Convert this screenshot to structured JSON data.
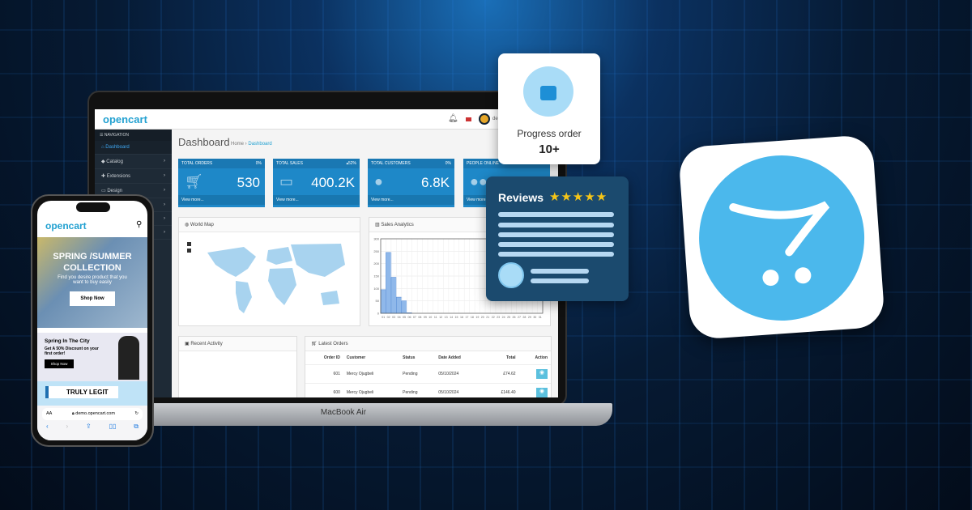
{
  "colors": {
    "accent": "#23a1d1",
    "tile": "#1e88c8",
    "sidebar": "#1e2a36",
    "logo_circle": "#4bb8ec",
    "review_card": "#1b4a6e",
    "star": "#f5c518"
  },
  "laptop": {
    "model_label": "MacBook Air"
  },
  "dashboard": {
    "brand": "opencart",
    "user_name": "de",
    "nav_header": "NAVIGATION",
    "nav": [
      {
        "label": "Dashboard",
        "icon": "home-icon"
      },
      {
        "label": "Catalog",
        "icon": "tag-icon"
      },
      {
        "label": "Extensions",
        "icon": "puzzle-icon"
      },
      {
        "label": "Design",
        "icon": "monitor-icon"
      }
    ],
    "title": "Dashboard",
    "breadcrumb": [
      "Home",
      "Dashboard"
    ],
    "tiles": [
      {
        "label": "TOTAL ORDERS",
        "change": "0%",
        "value": "530",
        "link": "View more...",
        "icon": "cart-icon"
      },
      {
        "label": "TOTAL SALES",
        "change": "52%",
        "value": "400.2K",
        "link": "View more...",
        "icon": "credit-card-icon"
      },
      {
        "label": "TOTAL CUSTOMERS",
        "change": "0%",
        "value": "6.8K",
        "link": "View more...",
        "icon": "user-icon"
      },
      {
        "label": "PEOPLE ONLINE",
        "change": "",
        "value": "",
        "link": "View more...",
        "icon": "users-icon"
      }
    ],
    "world_map": {
      "title": "World Map"
    },
    "sales": {
      "title": "Sales Analytics"
    },
    "recent_activity": {
      "title": "Recent Activity"
    },
    "latest_orders": {
      "title": "Latest Orders",
      "columns": [
        "Order ID",
        "Customer",
        "Status",
        "Date Added",
        "Total",
        "Action"
      ],
      "rows": [
        [
          "601",
          "Mercy Ojugbeli",
          "Pending",
          "05/10/2024",
          "£74.62"
        ],
        [
          "600",
          "Mercy Ojugbeli",
          "Pending",
          "05/10/2024",
          "£146.40"
        ]
      ]
    }
  },
  "chart_data": {
    "type": "bar",
    "title": "Sales Analytics",
    "categories": [
      "01",
      "02",
      "03",
      "04",
      "05",
      "06",
      "07",
      "08",
      "09",
      "10",
      "11",
      "12",
      "13",
      "14",
      "15",
      "16",
      "17",
      "18",
      "19",
      "20",
      "21",
      "22",
      "23",
      "24",
      "25",
      "26",
      "27",
      "28",
      "29",
      "30",
      "31"
    ],
    "values": [
      95,
      245,
      145,
      65,
      50,
      2,
      0,
      0,
      0,
      0,
      0,
      0,
      0,
      0,
      0,
      0,
      0,
      0,
      0,
      0,
      0,
      0,
      0,
      0,
      0,
      0,
      0,
      0,
      0,
      0,
      0
    ],
    "ylim": [
      0,
      300
    ],
    "yticks": [
      0,
      50,
      100,
      150,
      200,
      250,
      300
    ],
    "grid": true
  },
  "phone": {
    "brand": "opencart",
    "hero_title": "SPRING /SUMMER COLLECTION",
    "hero_sub": "Find you desire product that you want to buy easily",
    "hero_button": "Shop Now",
    "promo_title": "Spring In The City",
    "promo_text": "Get A 50% Discount on your first order!",
    "promo_button": "Shop Now",
    "banner": "TRULY LEGIT",
    "url_aa": "AA",
    "url": "demo.opencart.com"
  },
  "progress_card": {
    "label": "Progress order",
    "value": "10+"
  },
  "reviews_card": {
    "title": "Reviews",
    "stars": 5
  }
}
